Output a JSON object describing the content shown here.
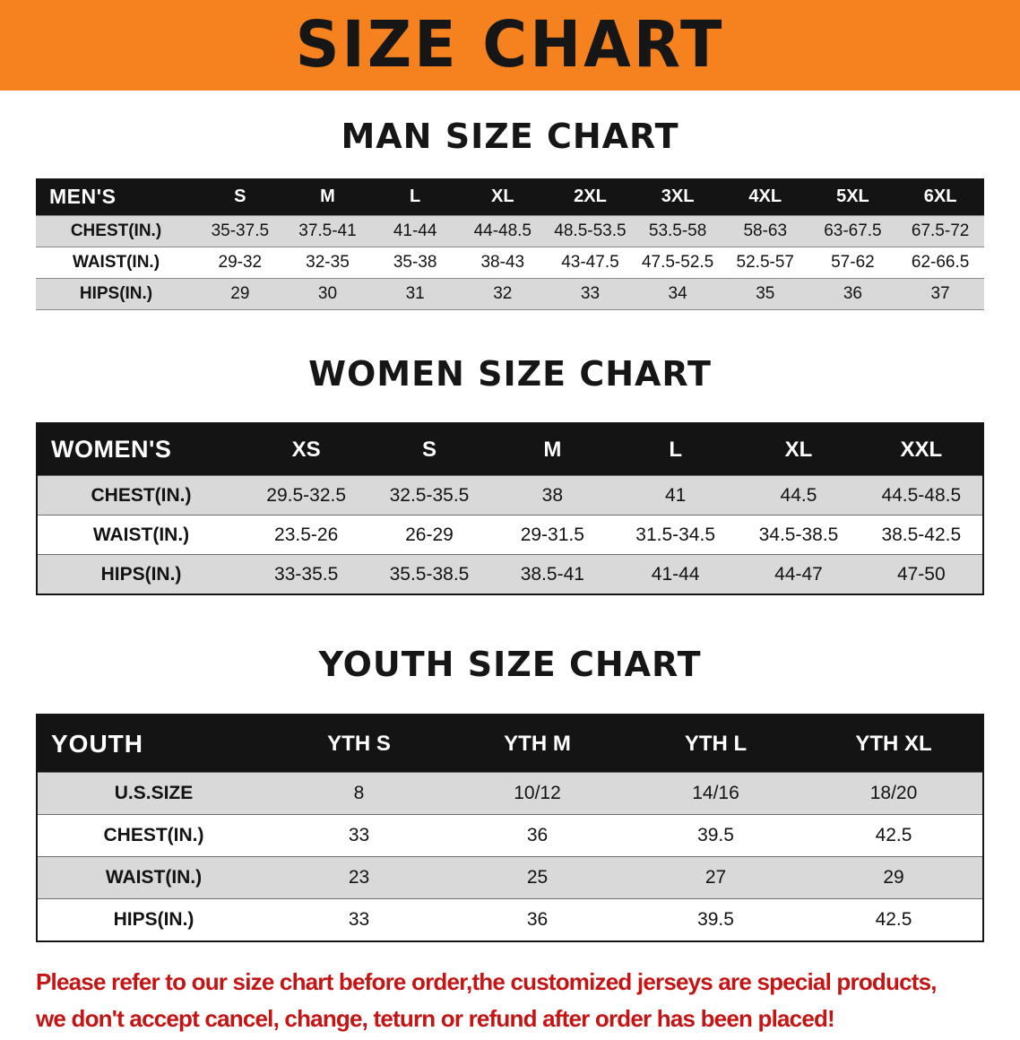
{
  "banner": {
    "title": "SIZE CHART"
  },
  "colors": {
    "banner_bg": "#f5821f",
    "table_header_bg": "#141414",
    "row_shade": "#d9d9d9",
    "notice_red": "#c41414"
  },
  "men": {
    "heading": "MAN SIZE CHART",
    "header": [
      "MEN'S",
      "S",
      "M",
      "L",
      "XL",
      "2XL",
      "3XL",
      "4XL",
      "5XL",
      "6XL"
    ],
    "rows": [
      [
        "CHEST(IN.)",
        "35-37.5",
        "37.5-41",
        "41-44",
        "44-48.5",
        "48.5-53.5",
        "53.5-58",
        "58-63",
        "63-67.5",
        "67.5-72"
      ],
      [
        "WAIST(IN.)",
        "29-32",
        "32-35",
        "35-38",
        "38-43",
        "43-47.5",
        "47.5-52.5",
        "52.5-57",
        "57-62",
        "62-66.5"
      ],
      [
        "HIPS(IN.)",
        "29",
        "30",
        "31",
        "32",
        "33",
        "34",
        "35",
        "36",
        "37"
      ]
    ]
  },
  "women": {
    "heading": "WOMEN SIZE CHART",
    "header": [
      "WOMEN'S",
      "XS",
      "S",
      "M",
      "L",
      "XL",
      "XXL"
    ],
    "rows": [
      [
        "CHEST(IN.)",
        "29.5-32.5",
        "32.5-35.5",
        "38",
        "41",
        "44.5",
        "44.5-48.5"
      ],
      [
        "WAIST(IN.)",
        "23.5-26",
        "26-29",
        "29-31.5",
        "31.5-34.5",
        "34.5-38.5",
        "38.5-42.5"
      ],
      [
        "HIPS(IN.)",
        "33-35.5",
        "35.5-38.5",
        "38.5-41",
        "41-44",
        "44-47",
        "47-50"
      ]
    ]
  },
  "youth": {
    "heading": "YOUTH SIZE CHART",
    "header": [
      "YOUTH",
      "YTH S",
      "YTH M",
      "YTH L",
      "YTH XL"
    ],
    "rows": [
      [
        "U.S.SIZE",
        "8",
        "10/12",
        "14/16",
        "18/20"
      ],
      [
        "CHEST(IN.)",
        "33",
        "36",
        "39.5",
        "42.5"
      ],
      [
        "WAIST(IN.)",
        "23",
        "25",
        "27",
        "29"
      ],
      [
        "HIPS(IN.)",
        "33",
        "36",
        "39.5",
        "42.5"
      ]
    ]
  },
  "footer": {
    "line1": "Please refer to our size chart before order,the customized jerseys are special products,",
    "line2": "we don't accept cancel, change, teturn or refund after order has been placed!"
  }
}
